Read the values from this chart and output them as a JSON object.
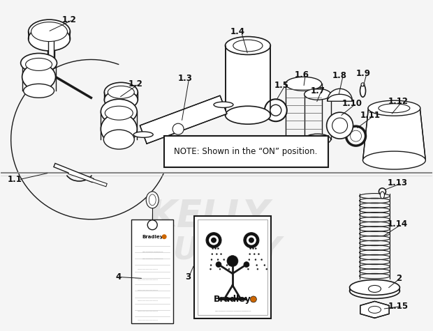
{
  "bg_color": "#f5f5f5",
  "line_color": "#1a1a1a",
  "label_color": "#111111",
  "note_text": "NOTE: Shown in the “ON” position.",
  "fig_w": 6.2,
  "fig_h": 4.75,
  "dpi": 100,
  "xlim": [
    0,
    620
  ],
  "ylim": [
    0,
    475
  ],
  "watermark_color": "#e0e0e0",
  "divider_y": 248,
  "divider_y2": 252
}
